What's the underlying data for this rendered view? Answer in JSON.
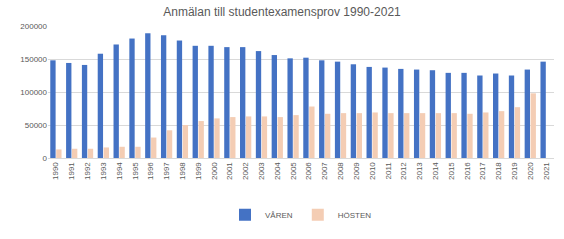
{
  "chart_data": {
    "type": "bar",
    "title": "Anmälan till studentexamensprov 1990-2021",
    "categories": [
      "1990",
      "1991",
      "1992",
      "1993",
      "1994",
      "1995",
      "1996",
      "1997",
      "1998",
      "1999",
      "2000",
      "2001",
      "2002",
      "2003",
      "2004",
      "2005",
      "2006",
      "2007",
      "2008",
      "2009",
      "2010",
      "2011",
      "2012",
      "2013",
      "2014",
      "2015",
      "2016",
      "2017",
      "2018",
      "2019",
      "2020",
      "2021"
    ],
    "series": [
      {
        "name": "VÅREN",
        "color": "#4472c4",
        "values": [
          148000,
          144000,
          141000,
          158000,
          172000,
          181000,
          189000,
          186000,
          178000,
          170000,
          170000,
          168000,
          168000,
          162000,
          156000,
          151000,
          152000,
          148000,
          146000,
          142000,
          138000,
          137000,
          135000,
          134000,
          133000,
          129000,
          129000,
          125000,
          128000,
          125000,
          134000,
          146000
        ]
      },
      {
        "name": "HÖSTEN",
        "color": "#f4cdb4",
        "values": [
          13000,
          14000,
          14000,
          16000,
          17000,
          17000,
          31000,
          42000,
          50000,
          56000,
          60000,
          62000,
          63000,
          63000,
          62000,
          65000,
          78000,
          67000,
          68000,
          68000,
          69000,
          68000,
          68000,
          68000,
          68000,
          68000,
          67000,
          69000,
          71000,
          77000,
          98000,
          null
        ]
      }
    ],
    "ylim": [
      0,
      200000
    ],
    "yticks": [
      0,
      50000,
      100000,
      150000,
      200000
    ],
    "grid": true,
    "legend": "bottom"
  }
}
